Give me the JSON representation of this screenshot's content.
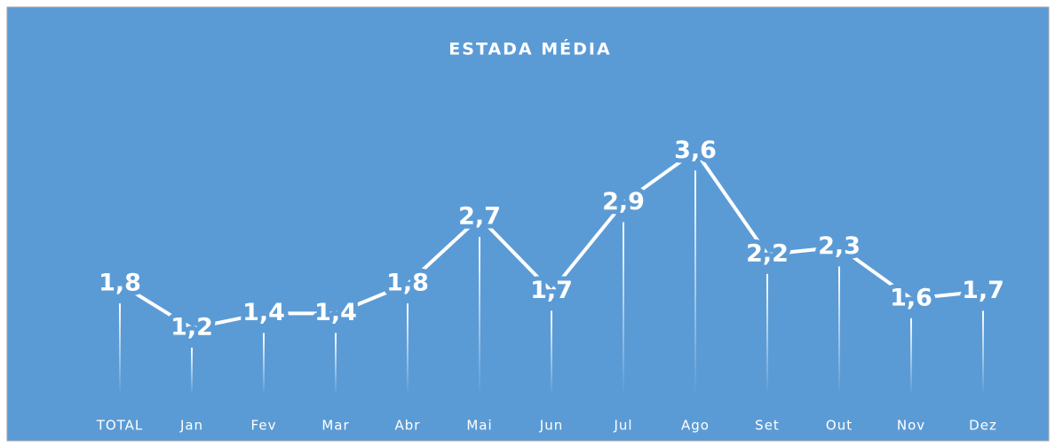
{
  "chart_data": {
    "type": "line",
    "title": "ESTADA MÉDIA",
    "categories": [
      "TOTAL",
      "Jan",
      "Fev",
      "Mar",
      "Abr",
      "Mai",
      "Jun",
      "Jul",
      "Ago",
      "Set",
      "Out",
      "Nov",
      "Dez"
    ],
    "values": [
      1.8,
      1.2,
      1.4,
      1.4,
      1.8,
      2.7,
      1.7,
      2.9,
      3.6,
      2.2,
      2.3,
      1.6,
      1.7
    ],
    "value_labels": [
      "1,8",
      "1,2",
      "1,4",
      "1,4",
      "1,8",
      "2,7",
      "1,7",
      "2,9",
      "3,6",
      "2,2",
      "2,3",
      "1,6",
      "1,7"
    ],
    "color": "#ffffff",
    "ylim": [
      0,
      4
    ]
  }
}
